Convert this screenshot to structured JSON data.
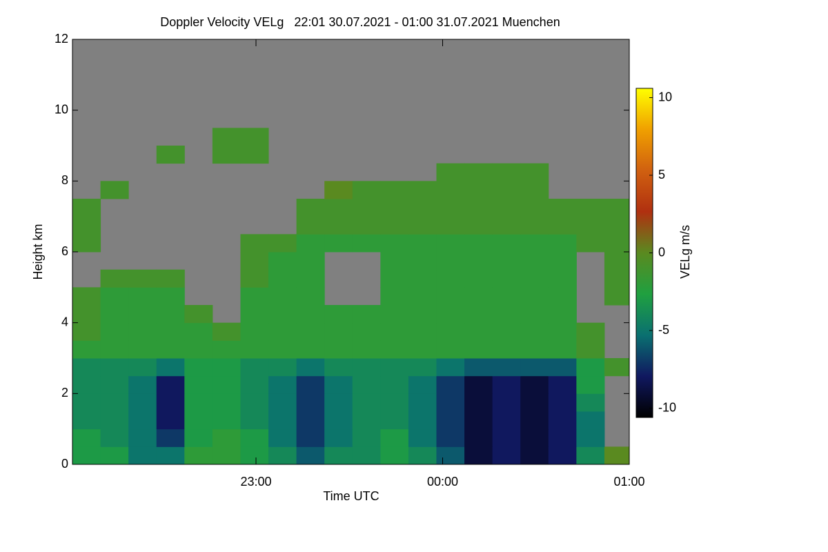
{
  "chart_data": {
    "type": "heatmap",
    "title": "Doppler Velocity VELg   22:01 30.07.2021 - 01:00 31.07.2021 Muenchen",
    "xlabel": "Time UTC",
    "ylabel": "Height km",
    "colorbar_label": "VELg m/s",
    "xlim": [
      1,
      180
    ],
    "xticks": [
      {
        "value": 60,
        "label": "23:00"
      },
      {
        "value": 120,
        "label": "00:00"
      },
      {
        "value": 180,
        "label": "01:00"
      }
    ],
    "ylim": [
      0,
      12
    ],
    "yticks": [
      0,
      2,
      4,
      6,
      8,
      10,
      12
    ],
    "clim": [
      -10.6,
      10.6
    ],
    "cticks": [
      -10,
      -5,
      0,
      5,
      10
    ],
    "colormap": [
      "#000000",
      "#101860",
      "#0a7070",
      "#20a040",
      "#5a8a20",
      "#b03010",
      "#d06010",
      "#f0a000",
      "#ffff00"
    ],
    "background": "#808080",
    "xbins": [
      1,
      10,
      19,
      28,
      37,
      46,
      55,
      64,
      73,
      82,
      91,
      100,
      109,
      118,
      127,
      136,
      145,
      154,
      163,
      172,
      181
    ],
    "ybins": [
      0,
      0.5,
      1,
      1.5,
      2,
      2.5,
      3,
      3.5,
      4,
      4.5,
      5,
      5.5,
      6,
      6.5,
      7,
      7.5,
      8,
      8.5,
      9,
      9.5,
      10,
      10.5,
      11,
      11.5,
      12
    ],
    "z": [
      [
        -3,
        -3,
        -5,
        -5,
        -2,
        -2,
        -3,
        -4,
        -6,
        -4,
        -4,
        -3,
        -4,
        -6,
        -9,
        -8,
        -9,
        -8,
        -4,
        0
      ],
      [
        -3,
        -4,
        -5,
        -7,
        -3,
        -2,
        -3,
        -5,
        -7,
        -5,
        -4,
        -3,
        -5,
        -7,
        -9,
        -8,
        -9,
        -8,
        -5,
        null
      ],
      [
        -4,
        -4,
        -5,
        -8,
        -3,
        -3,
        -4,
        -5,
        -7,
        -5,
        -4,
        -4,
        -5,
        -7,
        -9,
        -8,
        -9,
        -8,
        -5,
        null
      ],
      [
        -4,
        -4,
        -5,
        -8,
        -3,
        -3,
        -4,
        -5,
        -7,
        -5,
        -4,
        -4,
        -5,
        -7,
        -9,
        -8,
        -9,
        -8,
        -4,
        null
      ],
      [
        -4,
        -4,
        -5,
        -8,
        -3,
        -3,
        -4,
        -5,
        -7,
        -5,
        -4,
        -4,
        -5,
        -7,
        -9,
        -8,
        -9,
        -8,
        -3,
        null
      ],
      [
        -4,
        -4,
        -4,
        -5,
        -3,
        -3,
        -4,
        -4,
        -5,
        -4,
        -4,
        -4,
        -4,
        -5,
        -6,
        -6,
        -6,
        -6,
        -3,
        -1
      ],
      [
        -2,
        -2,
        -2,
        -2,
        -2,
        -2,
        -2,
        -2,
        -2,
        -2,
        -2,
        -2,
        -2,
        -2,
        -2,
        -2,
        -2,
        -2,
        -1,
        null
      ],
      [
        -1,
        -2,
        -2,
        -2,
        -2,
        -1,
        -2,
        -2,
        -2,
        -2,
        -2,
        -2,
        -2,
        -2,
        -2,
        -2,
        -2,
        -2,
        -1,
        null
      ],
      [
        -1,
        -2,
        -2,
        -2,
        -1,
        null,
        -2,
        -2,
        -2,
        -2,
        -2,
        -2,
        -2,
        -2,
        -2,
        -2,
        -2,
        -2,
        null,
        null
      ],
      [
        -1,
        -2,
        -2,
        -2,
        null,
        null,
        -2,
        -2,
        -2,
        null,
        null,
        -2,
        -2,
        -2,
        -2,
        -2,
        -2,
        -2,
        null,
        -1
      ],
      [
        null,
        -1,
        -1,
        -1,
        null,
        null,
        -1,
        -2,
        -2,
        null,
        null,
        -2,
        -2,
        -2,
        -2,
        -2,
        -2,
        -2,
        null,
        -1
      ],
      [
        null,
        null,
        null,
        null,
        null,
        null,
        -1,
        -2,
        -2,
        null,
        null,
        -2,
        -2,
        -2,
        -2,
        -2,
        -2,
        -2,
        null,
        -1
      ],
      [
        -1,
        null,
        null,
        null,
        null,
        null,
        -1,
        -1,
        -2,
        -2,
        -2,
        -2,
        -2,
        -2,
        -2,
        -2,
        -2,
        -2,
        -1,
        -1
      ],
      [
        -1,
        null,
        null,
        null,
        null,
        null,
        null,
        null,
        -1,
        -1,
        -1,
        -1,
        -1,
        -1,
        -1,
        -1,
        -1,
        -1,
        -1,
        -1
      ],
      [
        -1,
        null,
        null,
        null,
        null,
        null,
        null,
        null,
        -1,
        -1,
        -1,
        -1,
        -1,
        -1,
        -1,
        -1,
        -1,
        -1,
        -1,
        -1
      ],
      [
        null,
        -1,
        null,
        null,
        null,
        null,
        null,
        null,
        null,
        0,
        -1,
        -1,
        -1,
        -1,
        -1,
        -1,
        -1,
        null,
        null,
        null
      ],
      [
        null,
        null,
        null,
        null,
        null,
        null,
        null,
        null,
        null,
        null,
        null,
        null,
        null,
        -1,
        -1,
        -1,
        -1,
        null,
        null,
        null
      ],
      [
        null,
        null,
        null,
        -1,
        null,
        -1,
        -1,
        null,
        null,
        null,
        null,
        null,
        null,
        null,
        null,
        null,
        null,
        null,
        null,
        null
      ],
      [
        null,
        null,
        null,
        null,
        null,
        -1,
        -1,
        null,
        null,
        null,
        null,
        null,
        null,
        null,
        null,
        null,
        null,
        null,
        null,
        null
      ],
      [
        null,
        null,
        null,
        null,
        null,
        null,
        null,
        null,
        null,
        null,
        null,
        null,
        null,
        null,
        null,
        null,
        null,
        null,
        null,
        null
      ],
      [
        null,
        null,
        null,
        null,
        null,
        null,
        null,
        null,
        null,
        null,
        null,
        null,
        null,
        null,
        null,
        null,
        null,
        null,
        null,
        null
      ],
      [
        null,
        null,
        null,
        null,
        null,
        null,
        null,
        null,
        null,
        null,
        null,
        null,
        null,
        null,
        null,
        null,
        null,
        null,
        null,
        null
      ],
      [
        null,
        null,
        null,
        null,
        null,
        null,
        null,
        null,
        null,
        null,
        null,
        null,
        null,
        null,
        null,
        null,
        null,
        null,
        null,
        null
      ],
      [
        null,
        null,
        null,
        null,
        null,
        null,
        null,
        null,
        null,
        null,
        null,
        null,
        null,
        null,
        null,
        null,
        null,
        null,
        null,
        null
      ]
    ]
  }
}
